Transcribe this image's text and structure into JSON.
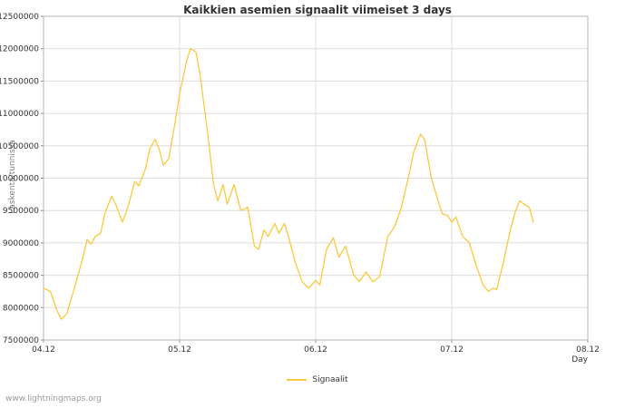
{
  "page": {
    "watermark": "www.lightningmaps.org"
  },
  "chart_data": {
    "type": "line",
    "title": "Kaikkien asemien signaalit viimeiset 3 days",
    "xlabel": "Day",
    "ylabel": "Laskenta/tunnissa",
    "grid": true,
    "legend_position": "bottom-center",
    "xlim": [
      0,
      4
    ],
    "ylim": [
      7500000,
      12500000
    ],
    "x_tick_labels": [
      "04.12",
      "05.12",
      "06.12",
      "07.12",
      "08.12"
    ],
    "x_tick_positions": [
      0,
      1,
      2,
      3,
      4
    ],
    "y_ticks": [
      7500000,
      8000000,
      8500000,
      9000000,
      9500000,
      10000000,
      10500000,
      11000000,
      11500000,
      12000000,
      12500000
    ],
    "series": [
      {
        "name": "Signaalit",
        "color": "#fbc93d",
        "x": [
          0.0,
          0.05,
          0.1,
          0.13,
          0.17,
          0.22,
          0.28,
          0.32,
          0.35,
          0.38,
          0.42,
          0.45,
          0.5,
          0.53,
          0.58,
          0.62,
          0.67,
          0.7,
          0.75,
          0.78,
          0.82,
          0.85,
          0.88,
          0.92,
          0.97,
          1.0,
          1.05,
          1.08,
          1.12,
          1.15,
          1.2,
          1.25,
          1.28,
          1.32,
          1.35,
          1.4,
          1.45,
          1.5,
          1.55,
          1.58,
          1.62,
          1.65,
          1.7,
          1.73,
          1.77,
          1.8,
          1.85,
          1.9,
          1.95,
          2.0,
          2.03,
          2.08,
          2.13,
          2.17,
          2.22,
          2.28,
          2.32,
          2.37,
          2.42,
          2.47,
          2.53,
          2.58,
          2.63,
          2.68,
          2.72,
          2.77,
          2.8,
          2.85,
          2.9,
          2.93,
          2.97,
          3.0,
          3.03,
          3.08,
          3.13,
          3.18,
          3.23,
          3.27,
          3.3,
          3.33,
          3.38,
          3.43,
          3.47,
          3.5,
          3.53,
          3.57,
          3.6
        ],
        "y": [
          8300000,
          8250000,
          7950000,
          7820000,
          7900000,
          8250000,
          8700000,
          9050000,
          8980000,
          9100000,
          9150000,
          9450000,
          9720000,
          9600000,
          9320000,
          9550000,
          9950000,
          9880000,
          10150000,
          10450000,
          10600000,
          10450000,
          10200000,
          10300000,
          10900000,
          11300000,
          11800000,
          12000000,
          11950000,
          11600000,
          10800000,
          9900000,
          9650000,
          9900000,
          9600000,
          9900000,
          9500000,
          9550000,
          8950000,
          8900000,
          9200000,
          9100000,
          9300000,
          9150000,
          9300000,
          9100000,
          8700000,
          8400000,
          8300000,
          8420000,
          8350000,
          8900000,
          9080000,
          8780000,
          8950000,
          8500000,
          8400000,
          8550000,
          8400000,
          8480000,
          9100000,
          9250000,
          9550000,
          10000000,
          10400000,
          10680000,
          10600000,
          10000000,
          9650000,
          9450000,
          9420000,
          9320000,
          9400000,
          9100000,
          9000000,
          8650000,
          8350000,
          8250000,
          8300000,
          8280000,
          8700000,
          9200000,
          9500000,
          9650000,
          9600000,
          9550000,
          9320000
        ]
      }
    ]
  }
}
